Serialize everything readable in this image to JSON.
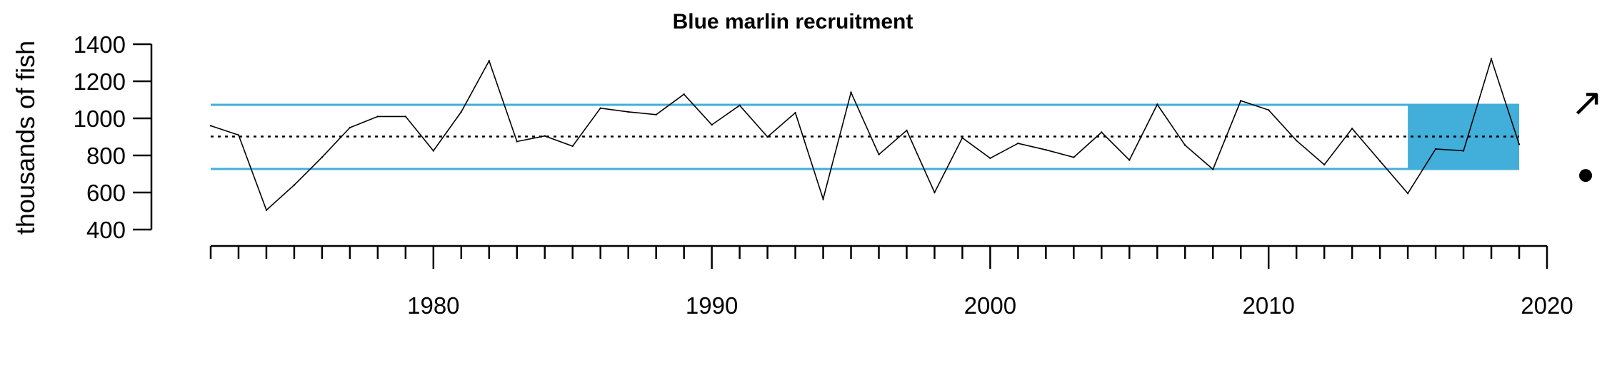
{
  "chart_data": {
    "type": "line",
    "title": "Blue marlin recruitment",
    "xlabel": "",
    "ylabel": "thousands of fish",
    "x_tick_labels": [
      "1980",
      "1990",
      "2000",
      "2010",
      "2020"
    ],
    "y_tick_labels": [
      "400",
      "600",
      "800",
      "1000",
      "1200",
      "1400"
    ],
    "xlim": [
      1972,
      2020
    ],
    "ylim": [
      400,
      1400
    ],
    "grid": false,
    "series": [
      {
        "x": [
          1972,
          1973,
          1974,
          1975,
          1976,
          1977,
          1978,
          1979,
          1980,
          1981,
          1982,
          1983,
          1984,
          1985,
          1986,
          1987,
          1988,
          1989,
          1990,
          1991,
          1992,
          1993,
          1994,
          1995,
          1996,
          1997,
          1998,
          1999,
          2000,
          2001,
          2002,
          2003,
          2004,
          2005,
          2006,
          2007,
          2008,
          2009,
          2010,
          2011,
          2012,
          2013,
          2014,
          2015,
          2016,
          2017,
          2018,
          2019
        ],
        "values": [
          960,
          910,
          505,
          640,
          790,
          950,
          1010,
          1010,
          825,
          1035,
          1310,
          875,
          905,
          850,
          1055,
          1035,
          1020,
          1130,
          965,
          1070,
          900,
          1030,
          565,
          1140,
          805,
          935,
          600,
          895,
          785,
          865,
          830,
          790,
          925,
          775,
          1075,
          855,
          725,
          1095,
          1045,
          880,
          750,
          945,
          770,
          595,
          835,
          825,
          1320,
          860
        ]
      }
    ],
    "mean": 902,
    "band": {
      "lower": 727,
      "upper": 1073
    },
    "recent_window": [
      2015,
      2019
    ],
    "trend_symbol": "↗",
    "status_symbol": "●",
    "colors": {
      "line": "#000000",
      "band": "#42AEDA",
      "mean": "#000000"
    }
  }
}
